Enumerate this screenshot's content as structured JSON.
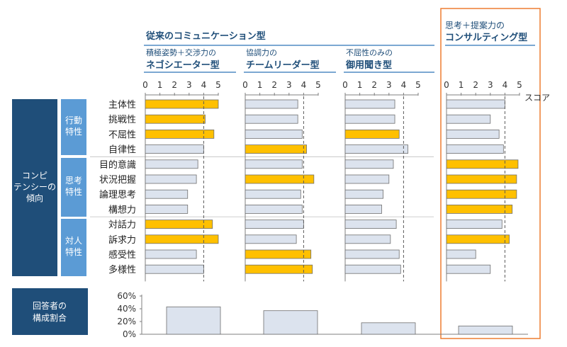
{
  "header": {
    "traditional_label": "従来のコミュニケーション型",
    "proposal_label": "思考＋提案力の",
    "proposal_type": "コンサルティング型"
  },
  "types": [
    {
      "sub": "積極姿勢＋交渉力の",
      "name": "ネゴシエーター型"
    },
    {
      "sub": "協調力の",
      "name": "チームリーダー型"
    },
    {
      "sub": "不屈性のみの",
      "name": "御用聞き型"
    },
    {
      "sub": "",
      "name": ""
    }
  ],
  "score_label": "スコア",
  "competency_box": {
    "line1": "コンピ",
    "line2": "テンシーの",
    "line3": "傾向"
  },
  "respondents_box": {
    "line1": "回答者の",
    "line2": "構成割合"
  },
  "groups": [
    {
      "line1": "行動",
      "line2": "特性"
    },
    {
      "line1": "思考",
      "line2": "特性"
    },
    {
      "line1": "対人",
      "line2": "特性"
    }
  ],
  "colors": {
    "highlight": "#FFC000",
    "normal": "#DCE3EE",
    "dark_box": "#1F4E79",
    "mid_box": "#5B9BD5",
    "frame": "#ED7D31",
    "axis_rule": "#2E75B6"
  },
  "chart_data": [
    {
      "type": "bar",
      "orientation": "horizontal",
      "x_ticks": [
        "0",
        "1",
        "2",
        "3",
        "4",
        "5"
      ],
      "xlim": [
        0,
        5
      ],
      "reference_line": 4,
      "categories": [
        "主体性",
        "挑戦性",
        "不屈性",
        "自律性",
        "目的意識",
        "状況把握",
        "論理思考",
        "構想力",
        "対話力",
        "訴求力",
        "感受性",
        "多様性"
      ],
      "series": [
        {
          "values": [
            5.0,
            4.1,
            4.7,
            4.0,
            3.6,
            3.5,
            2.9,
            2.9,
            4.6,
            5.0,
            3.5,
            4.0
          ],
          "highlight": [
            true,
            true,
            true,
            false,
            false,
            false,
            false,
            false,
            true,
            true,
            false,
            false
          ]
        },
        {
          "values": [
            3.6,
            3.6,
            3.9,
            4.2,
            3.9,
            4.7,
            3.8,
            3.9,
            4.0,
            3.5,
            4.5,
            4.6
          ],
          "highlight": [
            false,
            false,
            false,
            true,
            false,
            true,
            false,
            false,
            false,
            false,
            true,
            true
          ]
        },
        {
          "values": [
            3.4,
            3.4,
            3.7,
            4.3,
            3.3,
            3.0,
            2.6,
            2.5,
            3.5,
            3.1,
            3.7,
            3.8
          ],
          "highlight": [
            false,
            false,
            true,
            false,
            false,
            false,
            false,
            false,
            false,
            false,
            false,
            false
          ]
        },
        {
          "values": [
            4.0,
            3.0,
            3.6,
            3.9,
            4.9,
            4.8,
            4.8,
            4.5,
            3.8,
            4.3,
            2.0,
            3.0
          ],
          "highlight": [
            false,
            false,
            false,
            false,
            true,
            true,
            true,
            true,
            false,
            true,
            false,
            false
          ]
        }
      ]
    },
    {
      "type": "bar",
      "y_ticks": [
        "60%",
        "40%",
        "20%",
        "0%"
      ],
      "ylim": [
        0,
        60
      ],
      "values": [
        43,
        37,
        18,
        13
      ]
    }
  ]
}
